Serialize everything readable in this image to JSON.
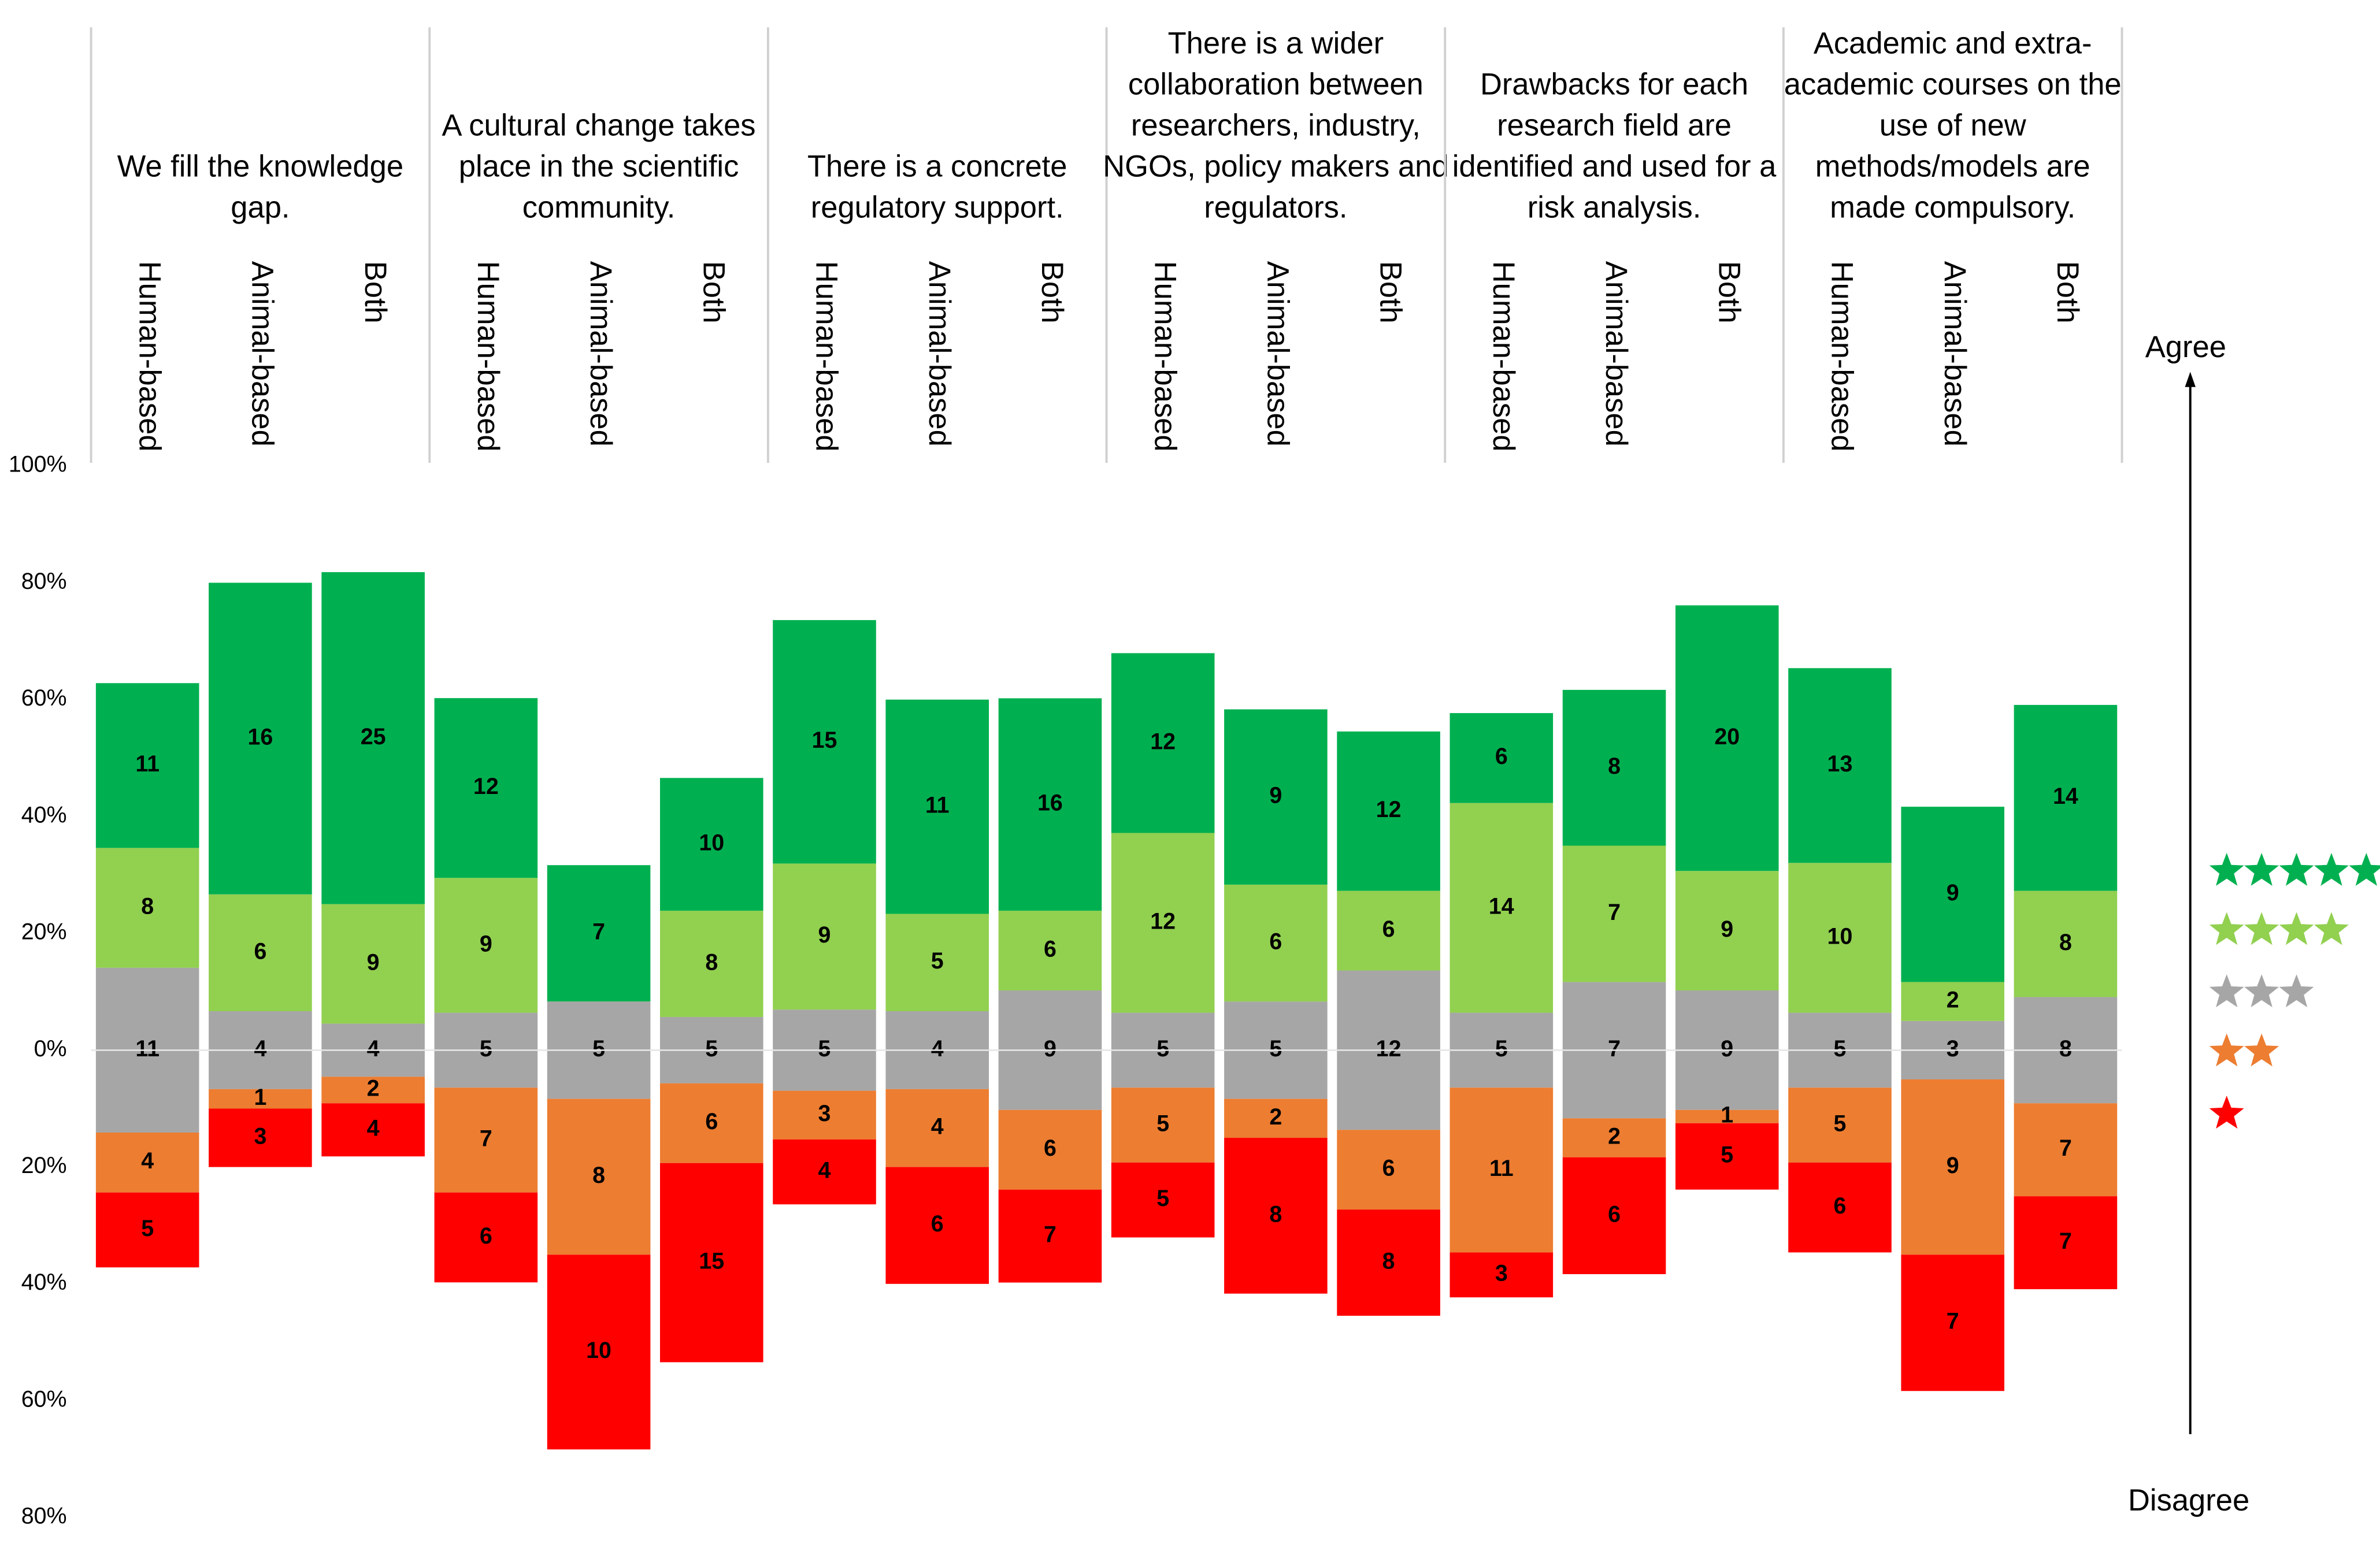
{
  "chart_data": {
    "type": "diverging-stacked-bar",
    "groups": [
      {
        "title": [
          "We fill the knowledge",
          "gap."
        ]
      },
      {
        "title": [
          "A cultural change takes",
          "place in the scientific",
          "community."
        ]
      },
      {
        "title": [
          "There is a concrete",
          "regulatory support."
        ]
      },
      {
        "title": [
          "There is a wider",
          "collaboration between",
          "researchers, industry,",
          "NGOs, policy makers and",
          "regulators."
        ]
      },
      {
        "title": [
          "Drawbacks for each",
          "research field are",
          "identified and used for a",
          "risk analysis."
        ]
      },
      {
        "title": [
          "Academic and extra-",
          "academic courses on the",
          "use of new",
          "methods/models are",
          "made compulsory."
        ]
      }
    ],
    "categories": [
      "Human-based",
      "Animal-based",
      "Both",
      "Human-based",
      "Animal-based",
      "Both",
      "Human-based",
      "Animal-based",
      "Both",
      "Human-based",
      "Animal-based",
      "Both",
      "Human-based",
      "Animal-based",
      "Both",
      "Human-based",
      "Animal-based",
      "Both"
    ],
    "series": [
      {
        "stars": 5,
        "color": "#00b050",
        "values": [
          11,
          16,
          25,
          12,
          7,
          10,
          15,
          11,
          16,
          12,
          9,
          12,
          6,
          8,
          20,
          13,
          9,
          14
        ]
      },
      {
        "stars": 4,
        "color": "#92d050",
        "values": [
          8,
          6,
          9,
          9,
          null,
          8,
          9,
          5,
          6,
          12,
          6,
          6,
          14,
          7,
          9,
          10,
          2,
          8
        ]
      },
      {
        "stars": 3,
        "color": "#a6a6a6",
        "values": [
          11,
          4,
          4,
          5,
          5,
          5,
          5,
          4,
          9,
          5,
          5,
          12,
          5,
          7,
          9,
          5,
          3,
          8
        ]
      },
      {
        "stars": 2,
        "color": "#ed7d31",
        "values": [
          4,
          1,
          2,
          7,
          8,
          6,
          3,
          4,
          6,
          5,
          2,
          6,
          11,
          2,
          1,
          5,
          9,
          7
        ]
      },
      {
        "stars": 1,
        "color": "#ff0000",
        "values": [
          5,
          3,
          4,
          6,
          10,
          15,
          4,
          6,
          7,
          5,
          8,
          8,
          3,
          6,
          5,
          6,
          7,
          7
        ]
      }
    ],
    "ylim": [
      -80,
      100
    ],
    "yticks": [
      {
        "value": 100,
        "label": "100%"
      },
      {
        "value": 80,
        "label": "80%"
      },
      {
        "value": 60,
        "label": "60%"
      },
      {
        "value": 40,
        "label": "40%"
      },
      {
        "value": 20,
        "label": "20%"
      },
      {
        "value": 0,
        "label": "0%"
      },
      {
        "value": -20,
        "label": "20%"
      },
      {
        "value": -40,
        "label": "40%"
      },
      {
        "value": -60,
        "label": "60%"
      },
      {
        "value": -80,
        "label": "80%"
      }
    ],
    "axis_top_label": "Agree",
    "axis_bottom_label": "Disagree"
  }
}
